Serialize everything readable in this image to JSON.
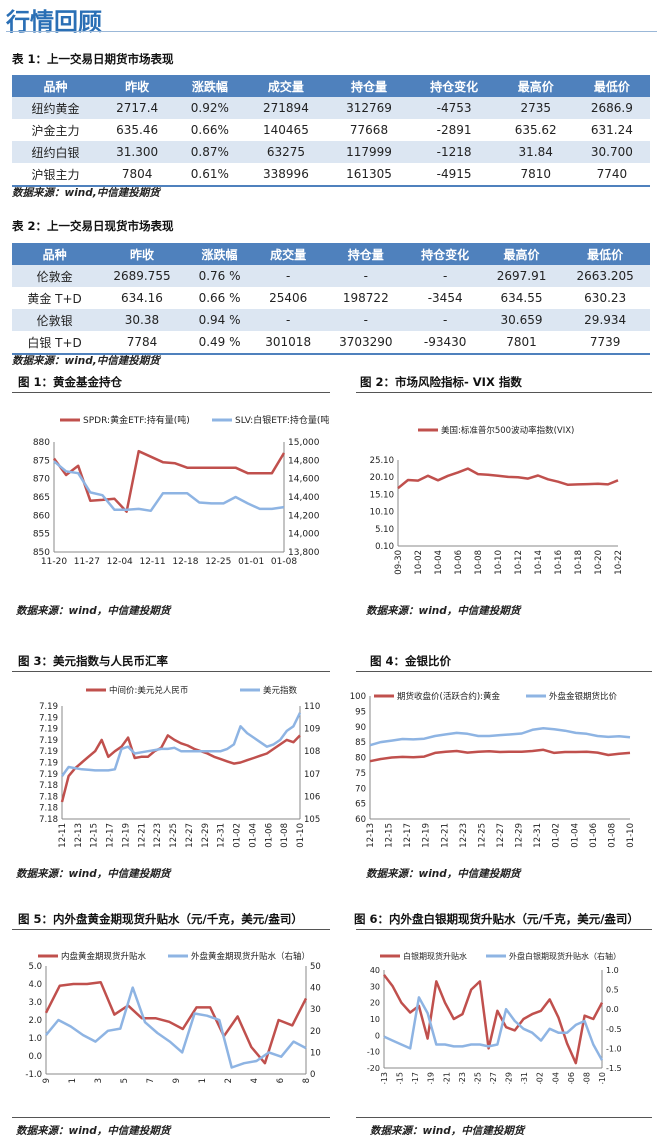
{
  "page_title": "行情回顾",
  "table1": {
    "caption": "表 1：上一交易日期货市场表现",
    "headers": [
      "品种",
      "昨收",
      "涨跌幅",
      "成交量",
      "持仓量",
      "持仓变化",
      "最高价",
      "最低价"
    ],
    "rows": [
      [
        "纽约黄金",
        "2717.4",
        "0.92%",
        "271894",
        "312769",
        "-4753",
        "2735",
        "2686.9"
      ],
      [
        "沪金主力",
        "635.46",
        "0.66%",
        "140465",
        "77668",
        "-2891",
        "635.62",
        "631.24"
      ],
      [
        "纽约白银",
        "31.300",
        "0.87%",
        "63275",
        "117999",
        "-1218",
        "31.84",
        "30.700"
      ],
      [
        "沪银主力",
        "7804",
        "0.61%",
        "338996",
        "161305",
        "-4915",
        "7810",
        "7740"
      ]
    ],
    "source": "数据来源：wind,中信建投期货"
  },
  "table2": {
    "caption": "表 2：上一交易日现货市场表现",
    "headers": [
      "品种",
      "昨收",
      "涨跌幅",
      "成交量",
      "持仓量",
      "持仓变化",
      "最高价",
      "最低价"
    ],
    "rows": [
      [
        "伦敦金",
        "2689.755",
        "0.76 %",
        "-",
        "-",
        "-",
        "2697.91",
        "2663.205"
      ],
      [
        "黄金 T+D",
        "634.16",
        "0.66 %",
        "25406",
        "198722",
        "-3454",
        "634.55",
        "630.23"
      ],
      [
        "伦敦银",
        "30.38",
        "0.94 %",
        "-",
        "-",
        "-",
        "30.659",
        "29.934"
      ],
      [
        "白银 T+D",
        "7784",
        "0.49 %",
        "301018",
        "3703290",
        "-93430",
        "7801",
        "7739"
      ]
    ],
    "source": "数据来源：wind,中信建投期货"
  },
  "figures": {
    "fig1_caption": "图 1：黄金基金持仓",
    "fig2_caption": "图 2：市场风险指标- VIX 指数",
    "fig3_caption": "图 3：美元指数与人民币汇率",
    "fig4_caption": "图 4：金银比价",
    "fig5_caption": "图 5：内外盘黄金期现货升贴水（元/千克，美元/盎司）",
    "fig6_caption": "图 6：内外盘白银期现货升贴水（元/千克，美元/盎司）",
    "source": "数据来源：wind，中信建投期货"
  },
  "chart_data": [
    {
      "id": "fig1",
      "type": "line",
      "x_ticks": [
        "11-20",
        "11-27",
        "12-04",
        "12-11",
        "12-18",
        "12-25",
        "01-01",
        "01-08"
      ],
      "ylim": [
        850,
        880
      ],
      "y2lim": [
        13800,
        15000
      ],
      "y_ticks": [
        850,
        855,
        860,
        865,
        870,
        875,
        880
      ],
      "y2_ticks": [
        "13,800",
        "14,000",
        "14,200",
        "14,400",
        "14,600",
        "14,800",
        "15,000"
      ],
      "series": [
        {
          "name": "SPDR:黄金ETF:持有量(吨)",
          "color": "#c0504d",
          "axis": "left",
          "values": [
            875.5,
            871,
            873.5,
            864,
            864.2,
            864.5,
            861,
            877.5,
            876,
            874.5,
            874.2,
            873,
            873,
            873,
            873,
            873,
            871.5,
            871.5,
            871.5,
            877
          ]
        },
        {
          "name": "SLV:白银ETF:持仓量(吨)",
          "color": "#8eb4e3",
          "axis": "right",
          "values": [
            14790,
            14680,
            14660,
            14450,
            14420,
            14260,
            14260,
            14270,
            14250,
            14440,
            14440,
            14440,
            14340,
            14330,
            14330,
            14400,
            14330,
            14270,
            14270,
            14290
          ]
        }
      ]
    },
    {
      "id": "fig2",
      "type": "line",
      "x_ticks": [
        "09-30",
        "10-02",
        "10-04",
        "10-06",
        "10-08",
        "10-10",
        "10-12",
        "10-14",
        "10-16",
        "10-18",
        "10-20",
        "10-22"
      ],
      "ylim": [
        0.1,
        25.1
      ],
      "y_ticks": [
        "0.10",
        "5.10",
        "10.10",
        "15.10",
        "20.10",
        "25.10"
      ],
      "series": [
        {
          "name": "美国:标准普尔500波动率指数(VIX)",
          "color": "#c0504d",
          "axis": "left",
          "values": [
            16.9,
            19.3,
            19.1,
            20.5,
            19.2,
            20.5,
            21.5,
            22.6,
            21.0,
            20.8,
            20.5,
            20.2,
            20.1,
            19.7,
            20.6,
            19.5,
            18.8,
            17.9,
            18.0,
            18.1,
            18.2,
            18.0,
            19.2
          ]
        }
      ]
    },
    {
      "id": "fig3",
      "type": "line",
      "x_ticks": [
        "12-11",
        "12-13",
        "12-15",
        "12-17",
        "12-19",
        "12-21",
        "12-23",
        "12-25",
        "12-27",
        "12-29",
        "12-31",
        "01-02",
        "01-04",
        "01-06",
        "01-08",
        "01-10"
      ],
      "y_ticks": [
        "7.18",
        "7.18",
        "7.18",
        "7.18",
        "7.19",
        "7.19",
        "7.19",
        "7.19",
        "7.19",
        "7.19",
        "7.19"
      ],
      "y2lim": [
        105,
        110
      ],
      "y2_ticks": [
        105,
        106,
        107,
        108,
        109,
        110
      ],
      "series": [
        {
          "name": "中间价:美元兑人民币",
          "color": "#c0504d",
          "axis": "left",
          "values": [
            0.15,
            0.38,
            0.45,
            0.5,
            0.55,
            0.6,
            0.7,
            0.55,
            0.6,
            0.64,
            0.72,
            0.54,
            0.55,
            0.55,
            0.6,
            0.63,
            0.74,
            0.7,
            0.67,
            0.65,
            0.62,
            0.6,
            0.58,
            0.55,
            0.53,
            0.51,
            0.49,
            0.5,
            0.52,
            0.54,
            0.56,
            0.58,
            0.62,
            0.66,
            0.7,
            0.68,
            0.74
          ]
        },
        {
          "name": "美元指数",
          "color": "#8eb4e3",
          "axis": "right",
          "values": [
            106.9,
            107.3,
            107.25,
            107.2,
            107.18,
            107.15,
            107.15,
            107.15,
            107.2,
            108.1,
            108.2,
            107.9,
            107.95,
            108.0,
            108.05,
            108.1,
            108.1,
            108.15,
            108.0,
            108.0,
            108.0,
            108.0,
            108.0,
            108.0,
            108.0,
            108.1,
            108.3,
            109.1,
            108.8,
            108.6,
            108.4,
            108.2,
            108.3,
            108.5,
            108.9,
            109.1,
            109.7
          ]
        }
      ]
    },
    {
      "id": "fig4",
      "type": "line",
      "x_ticks": [
        "12-13",
        "12-15",
        "12-17",
        "12-19",
        "12-21",
        "12-23",
        "12-25",
        "12-27",
        "12-29",
        "12-31",
        "01-02",
        "01-04",
        "01-06",
        "01-08",
        "01-10"
      ],
      "ylim": [
        60,
        100
      ],
      "y_ticks": [
        60,
        65,
        70,
        75,
        80,
        85,
        90,
        95,
        100
      ],
      "series": [
        {
          "name": "期货收盘价(活跃合约):黄金",
          "color": "#c0504d",
          "axis": "left",
          "values": [
            78.8,
            79.5,
            80.0,
            80.2,
            80.1,
            80.3,
            81.5,
            81.9,
            82.1,
            81.6,
            81.9,
            82.0,
            81.8,
            81.9,
            81.9,
            82.1,
            82.5,
            81.5,
            81.8,
            81.8,
            81.9,
            81.6,
            80.8,
            81.2,
            81.5
          ]
        },
        {
          "name": "外盘金银期货比价",
          "color": "#8eb4e3",
          "axis": "left",
          "values": [
            84.0,
            85.0,
            85.5,
            86.0,
            85.9,
            86.1,
            87.0,
            87.5,
            88.0,
            87.7,
            87.0,
            87.0,
            87.3,
            87.5,
            87.8,
            89.0,
            89.5,
            89.2,
            88.7,
            88.0,
            87.7,
            87.0,
            86.7,
            86.9,
            86.6
          ]
        }
      ]
    },
    {
      "id": "fig5",
      "type": "line",
      "x_ticks": [
        "12-19",
        "12-21",
        "12-23",
        "12-25",
        "12-27",
        "12-29",
        "12-31",
        "01-02",
        "01-04",
        "01-06",
        "01-08"
      ],
      "ylim": [
        -1.0,
        5.0
      ],
      "y2lim": [
        0,
        50
      ],
      "y_ticks": [
        "-1.0",
        "0.0",
        "1.0",
        "2.0",
        "3.0",
        "4.0",
        "5.0"
      ],
      "y2_ticks": [
        0,
        10,
        20,
        30,
        40,
        50
      ],
      "series": [
        {
          "name": "内盘黄金期现货升贴水",
          "color": "#c0504d",
          "axis": "left",
          "values": [
            2.4,
            3.9,
            4.0,
            4.0,
            4.1,
            2.3,
            2.8,
            2.1,
            2.1,
            1.9,
            1.5,
            2.7,
            2.7,
            1.1,
            2.2,
            0.5,
            -0.4,
            2.0,
            1.7,
            3.2
          ]
        },
        {
          "name": "外盘黄金期现货升贴水（右轴）",
          "color": "#8eb4e3",
          "axis": "right",
          "values": [
            18,
            25,
            22,
            18,
            15,
            20,
            21,
            40,
            24,
            19,
            15,
            10,
            28,
            27,
            25,
            3,
            5,
            6,
            10,
            8,
            15,
            12
          ]
        }
      ]
    },
    {
      "id": "fig6",
      "type": "line",
      "x_ticks": [
        "12-13",
        "12-15",
        "12-17",
        "12-19",
        "12-21",
        "12-23",
        "12-25",
        "12-27",
        "12-29",
        "12-31",
        "01-02",
        "01-04",
        "01-06",
        "01-08",
        "01-10"
      ],
      "ylim": [
        -20,
        40
      ],
      "y2lim": [
        -1.5,
        1.0
      ],
      "y_ticks": [
        -20,
        -10,
        0,
        10,
        20,
        30,
        40
      ],
      "y2_ticks": [
        "-1.5",
        "-1.0",
        "-0.5",
        "0.0",
        "0.5",
        "1.0"
      ],
      "series": [
        {
          "name": "白银期现货升贴水",
          "color": "#c0504d",
          "axis": "left",
          "values": [
            37,
            30,
            20,
            14,
            18,
            -2,
            33,
            20,
            10,
            13,
            28,
            33,
            -8,
            15,
            5,
            3,
            10,
            13,
            15,
            22,
            11,
            -5,
            -17,
            12,
            10,
            20
          ]
        },
        {
          "name": "外盘白银期现货升贴水（右轴）",
          "color": "#8eb4e3",
          "axis": "right",
          "values": [
            -0.7,
            -0.8,
            -0.9,
            -1.0,
            0.3,
            -0.1,
            -0.9,
            -0.9,
            -0.95,
            -0.95,
            -0.9,
            -0.9,
            -0.95,
            -0.9,
            0.0,
            -0.3,
            -0.5,
            -0.6,
            -0.8,
            -0.5,
            -0.6,
            -0.6,
            -0.4,
            -0.3,
            -0.9,
            -1.3
          ]
        }
      ]
    }
  ]
}
